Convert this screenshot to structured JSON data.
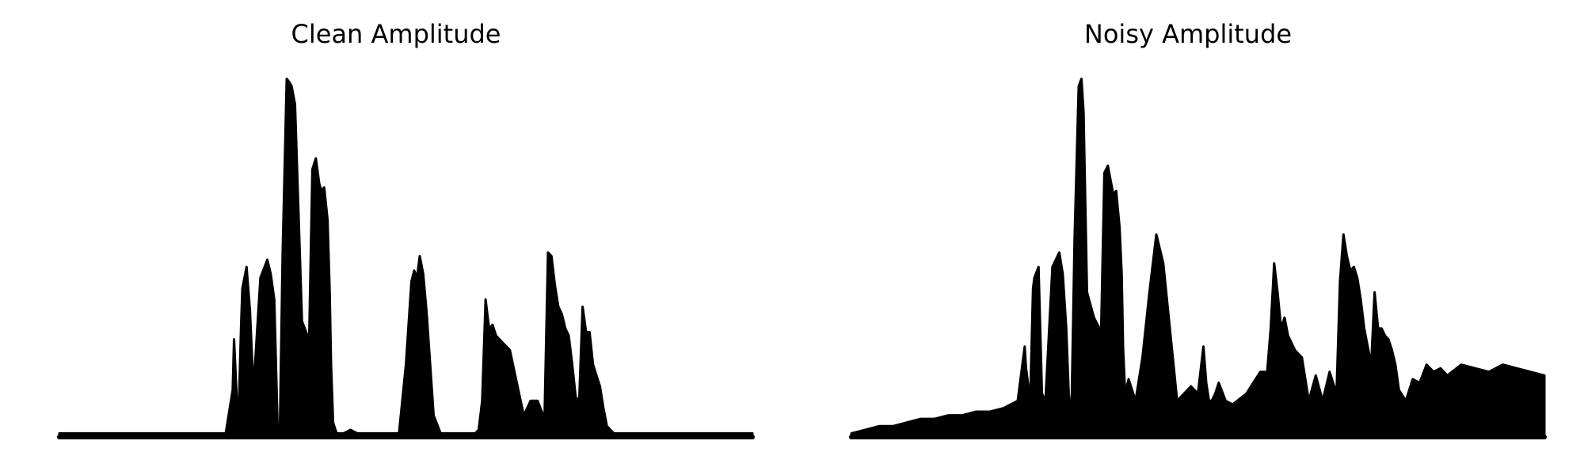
{
  "chart_data": [
    {
      "type": "area",
      "title": "Clean Amplitude",
      "axes_visible": false,
      "grid": false,
      "color": "#000000",
      "x_range": [
        0,
        1
      ],
      "ylim": [
        0,
        1
      ],
      "series": [
        {
          "x": [
            0,
            0.24,
            0.25,
            0.252,
            0.258,
            0.262,
            0.264,
            0.27,
            0.275,
            0.28,
            0.29,
            0.3,
            0.305,
            0.31,
            0.315,
            0.318,
            0.322,
            0.328,
            0.332,
            0.335,
            0.34,
            0.35,
            0.358,
            0.36,
            0.365,
            0.37,
            0.375,
            0.378,
            0.382,
            0.387,
            0.39,
            0.392,
            0.395,
            0.4,
            0.41,
            0.42,
            0.43,
            0.44,
            0.45,
            0.47,
            0.49,
            0.5,
            0.508,
            0.512,
            0.516,
            0.52,
            0.525,
            0.53,
            0.54,
            0.55,
            0.6,
            0.605,
            0.61,
            0.615,
            0.62,
            0.625,
            0.63,
            0.64,
            0.65,
            0.66,
            0.67,
            0.68,
            0.69,
            0.7,
            0.705,
            0.71,
            0.715,
            0.72,
            0.725,
            0.73,
            0.735,
            0.74,
            0.745,
            0.75,
            0.755,
            0.76,
            0.765,
            0.77,
            0.775,
            0.78,
            0.785,
            0.79,
            0.8,
            0.81,
            0.82,
            0.83,
            0.84,
            0.85,
            0.86,
            0.88,
            0.9,
            1.0
          ],
          "y": [
            0.01,
            0.01,
            0.13,
            0.27,
            0.02,
            0.3,
            0.41,
            0.47,
            0.35,
            0.13,
            0.44,
            0.49,
            0.45,
            0.38,
            0.02,
            0.01,
            0.5,
            0.99,
            0.98,
            0.97,
            0.92,
            0.32,
            0.28,
            0.23,
            0.74,
            0.77,
            0.7,
            0.68,
            0.69,
            0.6,
            0.4,
            0.2,
            0.04,
            0.01,
            0.01,
            0.02,
            0.01,
            0.01,
            0.01,
            0.01,
            0.01,
            0.2,
            0.43,
            0.46,
            0.44,
            0.5,
            0.45,
            0.34,
            0.06,
            0.01,
            0.01,
            0.02,
            0.1,
            0.38,
            0.3,
            0.31,
            0.28,
            0.26,
            0.24,
            0.15,
            0.06,
            0.1,
            0.1,
            0.05,
            0.51,
            0.5,
            0.42,
            0.36,
            0.34,
            0.3,
            0.28,
            0.2,
            0.11,
            0.1,
            0.36,
            0.29,
            0.29,
            0.2,
            0.17,
            0.14,
            0.08,
            0.03,
            0.01,
            0.01,
            0.01,
            0.01,
            0.01,
            0.01,
            0.01,
            0.01,
            0.01,
            0.01
          ]
        }
      ]
    },
    {
      "type": "area",
      "title": "Noisy Amplitude",
      "axes_visible": false,
      "grid": false,
      "color": "#000000",
      "x_range": [
        0,
        1
      ],
      "ylim": [
        0,
        1
      ],
      "series": [
        {
          "x": [
            0,
            0.02,
            0.04,
            0.06,
            0.08,
            0.1,
            0.12,
            0.14,
            0.16,
            0.18,
            0.2,
            0.22,
            0.24,
            0.25,
            0.252,
            0.258,
            0.262,
            0.264,
            0.27,
            0.275,
            0.28,
            0.29,
            0.3,
            0.305,
            0.31,
            0.315,
            0.318,
            0.322,
            0.328,
            0.332,
            0.335,
            0.34,
            0.35,
            0.358,
            0.36,
            0.365,
            0.37,
            0.375,
            0.378,
            0.382,
            0.387,
            0.39,
            0.392,
            0.395,
            0.4,
            0.41,
            0.42,
            0.43,
            0.44,
            0.45,
            0.47,
            0.49,
            0.5,
            0.508,
            0.512,
            0.516,
            0.52,
            0.525,
            0.53,
            0.54,
            0.55,
            0.57,
            0.58,
            0.59,
            0.6,
            0.605,
            0.61,
            0.615,
            0.62,
            0.625,
            0.63,
            0.64,
            0.65,
            0.66,
            0.67,
            0.68,
            0.69,
            0.7,
            0.705,
            0.71,
            0.715,
            0.72,
            0.725,
            0.73,
            0.735,
            0.74,
            0.745,
            0.75,
            0.755,
            0.76,
            0.765,
            0.77,
            0.775,
            0.78,
            0.785,
            0.79,
            0.8,
            0.81,
            0.82,
            0.83,
            0.84,
            0.85,
            0.86,
            0.88,
            0.9,
            0.92,
            0.94,
            0.96,
            0.98,
            1.0
          ],
          "y": [
            0.01,
            0.02,
            0.03,
            0.03,
            0.04,
            0.05,
            0.05,
            0.06,
            0.06,
            0.07,
            0.07,
            0.08,
            0.1,
            0.25,
            0.19,
            0.1,
            0.41,
            0.44,
            0.47,
            0.12,
            0.1,
            0.47,
            0.51,
            0.45,
            0.3,
            0.05,
            0.12,
            0.55,
            0.97,
            0.99,
            0.9,
            0.4,
            0.33,
            0.3,
            0.26,
            0.73,
            0.75,
            0.7,
            0.67,
            0.68,
            0.58,
            0.45,
            0.25,
            0.12,
            0.16,
            0.1,
            0.22,
            0.4,
            0.56,
            0.48,
            0.1,
            0.14,
            0.12,
            0.25,
            0.15,
            0.1,
            0.1,
            0.12,
            0.15,
            0.1,
            0.09,
            0.12,
            0.15,
            0.18,
            0.18,
            0.3,
            0.48,
            0.4,
            0.3,
            0.33,
            0.28,
            0.24,
            0.22,
            0.1,
            0.17,
            0.1,
            0.18,
            0.12,
            0.43,
            0.56,
            0.5,
            0.46,
            0.47,
            0.44,
            0.38,
            0.3,
            0.25,
            0.2,
            0.4,
            0.3,
            0.3,
            0.28,
            0.27,
            0.24,
            0.2,
            0.13,
            0.1,
            0.16,
            0.15,
            0.2,
            0.18,
            0.19,
            0.17,
            0.2,
            0.19,
            0.18,
            0.2,
            0.19,
            0.18,
            0.17
          ]
        }
      ]
    }
  ]
}
